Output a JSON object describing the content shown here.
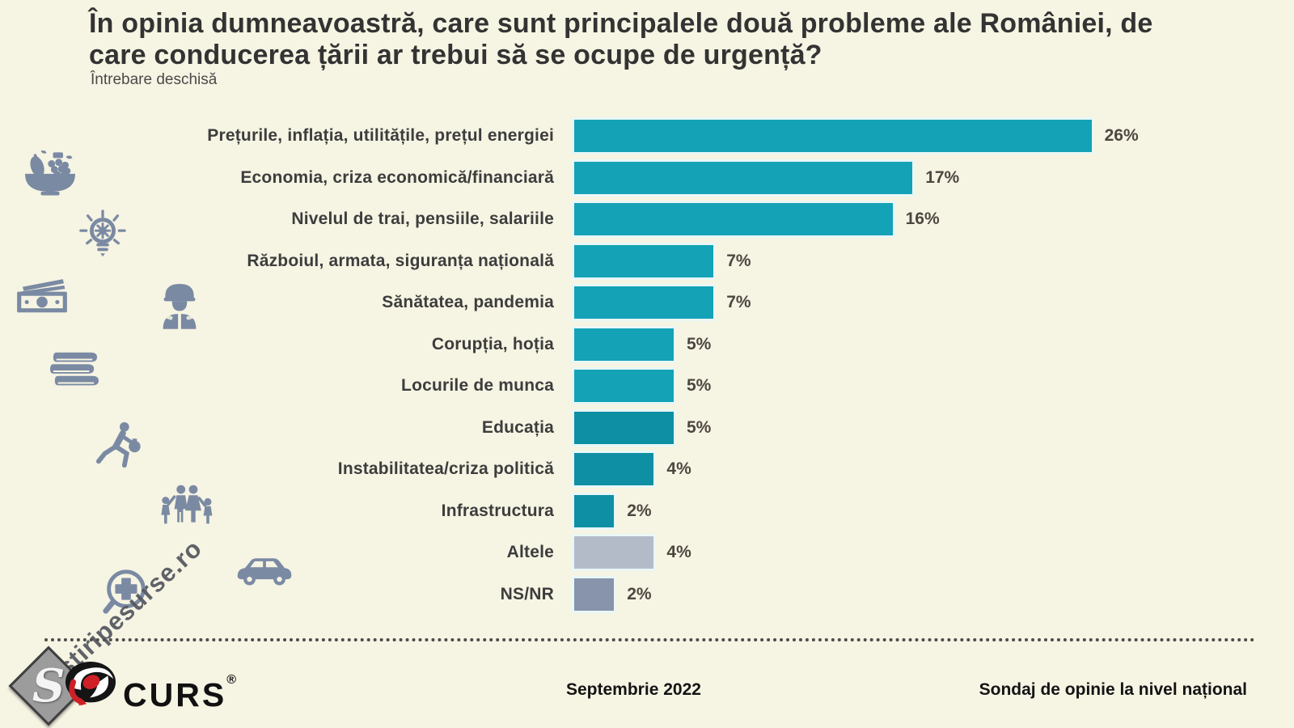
{
  "title": "În opinia dumneavoastră, care sunt principalele două probleme ale României, de care conducerea țării ar trebui să se ocupe de urgență?",
  "subtitle": "Întrebare deschisă",
  "chart_data": {
    "type": "bar",
    "orientation": "horizontal",
    "title": "În opinia dumneavoastră, care sunt principalele două probleme ale României, de care conducerea țării ar trebui să se ocupe de urgență?",
    "xlabel": "",
    "ylabel": "",
    "xlim": [
      0,
      26
    ],
    "grid": false,
    "legend": "none",
    "unit": "%",
    "categories": [
      "Prețurile, inflația, utilitățile, prețul energiei",
      "Economia, criza economică/financiară",
      "Nivelul de trai, pensiile, salariile",
      "Războiul, armata, siguranța națională",
      "Sănătatea, pandemia",
      "Corupția, hoția",
      "Locurile de munca",
      "Educația",
      "Instabilitatea/criza politică",
      "Infrastructura",
      "Altele",
      "NS/NR"
    ],
    "values": [
      26,
      17,
      16,
      7,
      7,
      5,
      5,
      5,
      4,
      2,
      4,
      2
    ],
    "values_formatted": [
      "26%",
      "17%",
      "16%",
      "7%",
      "7%",
      "5%",
      "5%",
      "5%",
      "4%",
      "2%",
      "4%",
      "2%"
    ],
    "bar_colors": [
      "#14a2b6",
      "#14a2b6",
      "#14a2b6",
      "#14a2b6",
      "#14a2b6",
      "#14a2b6",
      "#14a2b6",
      "#0e8fa4",
      "#0e8fa4",
      "#0e8fa4",
      "#b4bbc8",
      "#8794ab"
    ]
  },
  "colors": {
    "background": "#f6f4e3",
    "teal_light": "#14a2b6",
    "teal_dark": "#0e8fa4",
    "gray_other": "#b4bbc8",
    "gray_nsnr": "#8794ab",
    "icon_gray_blue": "#7b8aa3",
    "brand_red": "#cf2027",
    "brand_black": "#141414"
  },
  "icons": [
    "fruit-bowl-icon",
    "idea-bulb-icon",
    "money-icon",
    "soldier-icon",
    "books-icon",
    "running-thief-icon",
    "family-icon",
    "car-icon",
    "medical-cross-icon"
  ],
  "watermark": "stiripesurse.ro",
  "watermark_monogram": "S",
  "footer": {
    "brand": "CURS",
    "brand_mark": "®",
    "date": "Septembrie 2022",
    "note": "Sondaj de opinie la nivel național"
  }
}
